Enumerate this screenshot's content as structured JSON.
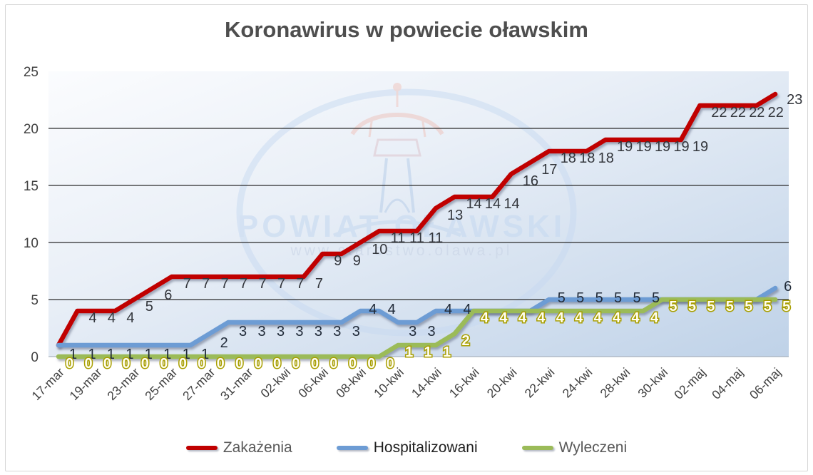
{
  "title": "Koronawirus w powiecie oławskim",
  "watermark": {
    "line1": "POWIAT OŁAWSKI",
    "line2": "www.starostwo.olawa.pl"
  },
  "legend": [
    {
      "label": "Zakażenia",
      "color": "#C00000"
    },
    {
      "label": "Hospitalizowani",
      "color": "#6D9CD4"
    },
    {
      "label": "Wyleczeni",
      "color": "#9BBB59"
    }
  ],
  "chart_data": {
    "type": "line",
    "n_points": 39,
    "x_tick_labels": [
      "17-mar",
      "19-mar",
      "23-mar",
      "25-mar",
      "27-mar",
      "31-mar",
      "02-kwi",
      "06-kwi",
      "08-kwi",
      "10-kwi",
      "14-kwi",
      "16-kwi",
      "20-kwi",
      "22-kwi",
      "24-kwi",
      "28-kwi",
      "30-kwi",
      "02-maj",
      "04-maj",
      "06-maj"
    ],
    "tick_every": 2,
    "ylim": [
      0,
      25
    ],
    "yticks": [
      0,
      5,
      10,
      15,
      20,
      25
    ],
    "gridlines_at": [
      5,
      10,
      15,
      20
    ],
    "grid": "horizontal",
    "legend_position": "bottom",
    "series": [
      {
        "name": "Zakażenia",
        "color": "#C00000",
        "label_color": "#33363c",
        "values": [
          1,
          4,
          4,
          4,
          5,
          6,
          7,
          7,
          7,
          7,
          7,
          7,
          7,
          7,
          9,
          9,
          10,
          11,
          11,
          11,
          13,
          14,
          14,
          14,
          16,
          17,
          18,
          18,
          18,
          19,
          19,
          19,
          19,
          19,
          22,
          22,
          22,
          22,
          23
        ],
        "hidden_label_indices": [
          0
        ]
      },
      {
        "name": "Hospitalizowani",
        "color": "#6D9CD4",
        "label_color": "#202a38",
        "values": [
          1,
          1,
          1,
          1,
          1,
          1,
          1,
          1,
          2,
          3,
          3,
          3,
          3,
          3,
          3,
          3,
          4,
          4,
          3,
          3,
          4,
          4,
          4,
          4,
          4,
          4,
          5,
          5,
          5,
          5,
          5,
          5,
          5,
          5,
          5,
          5,
          5,
          5,
          6
        ],
        "hidden_label_indices": [
          22,
          23,
          24,
          25,
          32,
          33,
          34,
          35,
          36,
          37
        ]
      },
      {
        "name": "Wyleczeni",
        "color": "#9BBB59",
        "label_color": "#fffef2",
        "label_stroke": "#a89e00",
        "values": [
          0,
          0,
          0,
          0,
          0,
          0,
          0,
          0,
          0,
          0,
          0,
          0,
          0,
          0,
          0,
          0,
          0,
          0,
          1,
          1,
          1,
          2,
          4,
          4,
          4,
          4,
          4,
          4,
          4,
          4,
          4,
          4,
          5,
          5,
          5,
          5,
          5,
          5,
          5
        ],
        "hidden_label_indices": []
      }
    ]
  },
  "colors": {
    "title": "#4e4e4e",
    "axis_text": "#404040",
    "gridline": "#2b2b2b",
    "plot_bg_light": "#fbfcfe",
    "plot_bg_mid": "#e9eff7",
    "plot_bg_dark": "#bfd2e8",
    "watermark_blue": "#c7daf1"
  }
}
